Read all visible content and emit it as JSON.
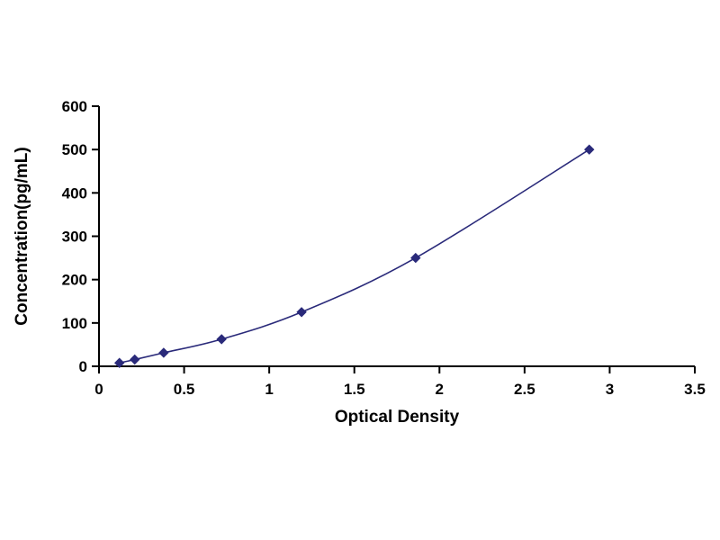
{
  "figure": {
    "kind": "elisa-standard-curve"
  },
  "chart_data": {
    "type": "line",
    "title": "",
    "xlabel": "Optical Density",
    "ylabel": "Concentration(pg/mL)",
    "xlim": [
      0,
      3.5
    ],
    "ylim": [
      0,
      600
    ],
    "xticks": [
      0,
      0.5,
      1,
      1.5,
      2,
      2.5,
      3,
      3.5
    ],
    "xtick_labels": [
      "0",
      "0.5",
      "1",
      "1.5",
      "2",
      "2.5",
      "3",
      "3.5"
    ],
    "yticks": [
      0,
      100,
      200,
      300,
      400,
      500,
      600
    ],
    "ytick_labels": [
      "0",
      "100",
      "200",
      "300",
      "400",
      "500",
      "600"
    ],
    "grid": false,
    "legend": "none",
    "background": "#ffffff",
    "axis_color": "#000000",
    "series": [
      {
        "name": "standard-curve",
        "marker": "diamond",
        "color": "#2a2a7a",
        "points": [
          {
            "x": 0.12,
            "y": 7.8
          },
          {
            "x": 0.21,
            "y": 15.6
          },
          {
            "x": 0.38,
            "y": 31.2
          },
          {
            "x": 0.72,
            "y": 62.5
          },
          {
            "x": 1.19,
            "y": 125
          },
          {
            "x": 1.86,
            "y": 250
          },
          {
            "x": 2.88,
            "y": 500
          }
        ]
      }
    ]
  }
}
